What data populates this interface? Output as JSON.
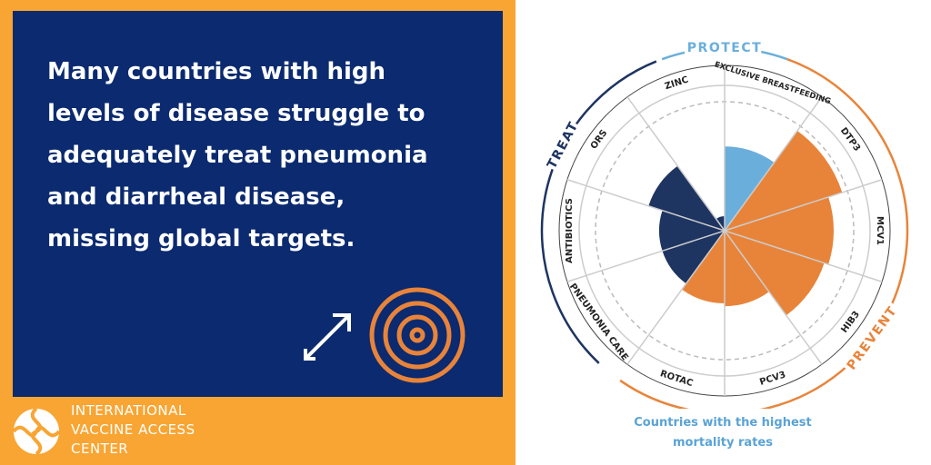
{
  "panel": {
    "headline": "Many countries with high levels of disease struggle to adequately treat pneumonia and diarrheal disease, missing global targets."
  },
  "logo": {
    "lines": [
      "INTERNATIONAL",
      "VACCINE ACCESS",
      "CENTER"
    ]
  },
  "chart_data": {
    "type": "polar-area",
    "categories": [
      "EXCLUSIVE BREASTFEEDING",
      "DTP3",
      "MCV1",
      "HIB3",
      "PCV3",
      "ROTAC",
      "PNEUMONIA CARE",
      "ANTIBIOTICS",
      "ORS",
      "ZINC"
    ],
    "values": [
      58,
      85,
      75,
      72,
      52,
      50,
      45,
      45,
      55,
      10
    ],
    "colors": [
      "#6aaedc",
      "#e8843a",
      "#e8843a",
      "#e8843a",
      "#e8843a",
      "#e8843a",
      "#1e3461",
      "#1e3461",
      "#1e3461",
      "#1e3461"
    ],
    "rlim": [
      0,
      100
    ],
    "groups": [
      {
        "name": "PROTECT",
        "color": "#6aaedc"
      },
      {
        "name": "PREVENT",
        "color": "#e8843a"
      },
      {
        "name": "TREAT",
        "color": "#1e3461"
      }
    ],
    "caption": "Countries with the highest mortality rates"
  }
}
